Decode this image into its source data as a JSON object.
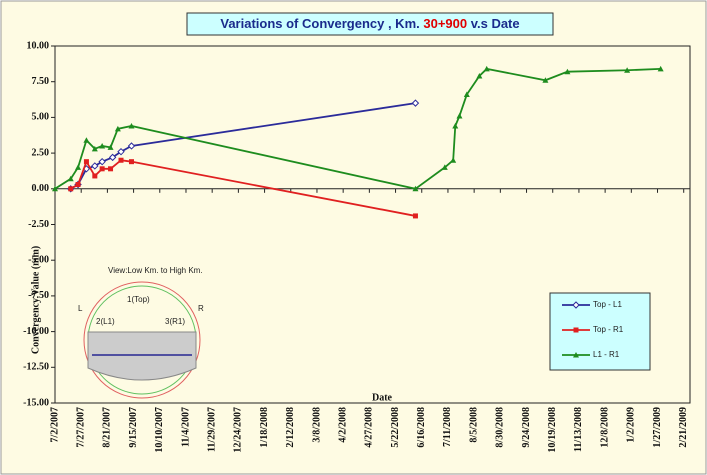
{
  "chart_data": {
    "type": "line",
    "title_parts": [
      "Variations of Convergency , Km. ",
      "30+900",
      " v.s Date"
    ],
    "title_colors": [
      "#1a2b8c",
      "#e00000",
      "#1a2b8c"
    ],
    "x_label": "Date",
    "y_label": "Convergency Value (mm)",
    "xlim": [
      "7/2/2007",
      "2/27/2009"
    ],
    "xticks": [
      "7/2/2007",
      "7/27/2007",
      "8/21/2007",
      "9/15/2007",
      "10/10/2007",
      "11/4/2007",
      "11/29/2007",
      "12/24/2007",
      "1/18/2008",
      "2/12/2008",
      "3/8/2008",
      "4/2/2008",
      "4/27/2008",
      "5/22/2008",
      "6/16/2008",
      "7/11/2008",
      "8/5/2008",
      "8/30/2008",
      "9/24/2008",
      "10/19/2008",
      "11/13/2008",
      "12/8/2008",
      "1/2/2009",
      "1/27/2009",
      "2/21/2009"
    ],
    "ylim": [
      -15,
      10
    ],
    "yticks": [
      {
        "value": 10,
        "label": "10.00"
      },
      {
        "value": 7.5,
        "label": "7.50"
      },
      {
        "value": 5,
        "label": "5.00"
      },
      {
        "value": 2.5,
        "label": "2.50"
      },
      {
        "value": 0,
        "label": "0.00"
      },
      {
        "value": -2.5,
        "label": "-2.50"
      },
      {
        "value": -5,
        "label": "-5.00"
      },
      {
        "value": -7.5,
        "label": "-7.50"
      },
      {
        "value": -10,
        "label": "-10.00"
      },
      {
        "value": -12.5,
        "label": "-12.50"
      },
      {
        "value": -15,
        "label": "-15.00"
      }
    ],
    "series": [
      {
        "name": "Top - L1",
        "color": "#2b2b9a",
        "marker": "diamond",
        "x": [
          "7/17/2007",
          "7/24/2007",
          "8/1/2007",
          "8/9/2007",
          "8/16/2007",
          "8/26/2007",
          "9/3/2007",
          "9/13/2007",
          "6/10/2008"
        ],
        "values": [
          0,
          0.3,
          1.4,
          1.6,
          1.9,
          2.2,
          2.6,
          3.0,
          6.0
        ]
      },
      {
        "name": "Top - R1",
        "color": "#e02020",
        "marker": "square",
        "x": [
          "7/17/2007",
          "7/24/2007",
          "8/1/2007",
          "8/9/2007",
          "8/16/2007",
          "8/24/2007",
          "9/3/2007",
          "9/13/2007",
          "6/10/2008"
        ],
        "values": [
          0,
          0.3,
          1.9,
          0.9,
          1.4,
          1.4,
          2.0,
          1.9,
          -1.9
        ]
      },
      {
        "name": "L1 - R1",
        "color": "#1e8c1e",
        "marker": "triangle",
        "x": [
          "7/2/2007",
          "7/17/2007",
          "7/24/2007",
          "8/1/2007",
          "8/9/2007",
          "8/16/2007",
          "8/24/2007",
          "8/31/2007",
          "9/13/2007",
          "6/10/2008",
          "7/8/2008",
          "7/16/2008",
          "7/18/2008",
          "7/22/2008",
          "7/29/2008",
          "8/10/2008",
          "8/17/2008",
          "10/12/2008",
          "11/2/2008",
          "12/29/2008",
          "1/30/2009"
        ],
        "values": [
          0,
          0.7,
          1.5,
          3.4,
          2.8,
          3.0,
          2.9,
          4.2,
          4.4,
          0.0,
          1.5,
          2.0,
          4.4,
          5.1,
          6.6,
          7.9,
          8.4,
          7.6,
          8.2,
          8.3,
          8.4
        ]
      }
    ],
    "annotations": [
      "View:Low Km. to High Km.",
      "L",
      "R",
      "1(Top)",
      "2(L1)",
      "3(R1)"
    ]
  }
}
